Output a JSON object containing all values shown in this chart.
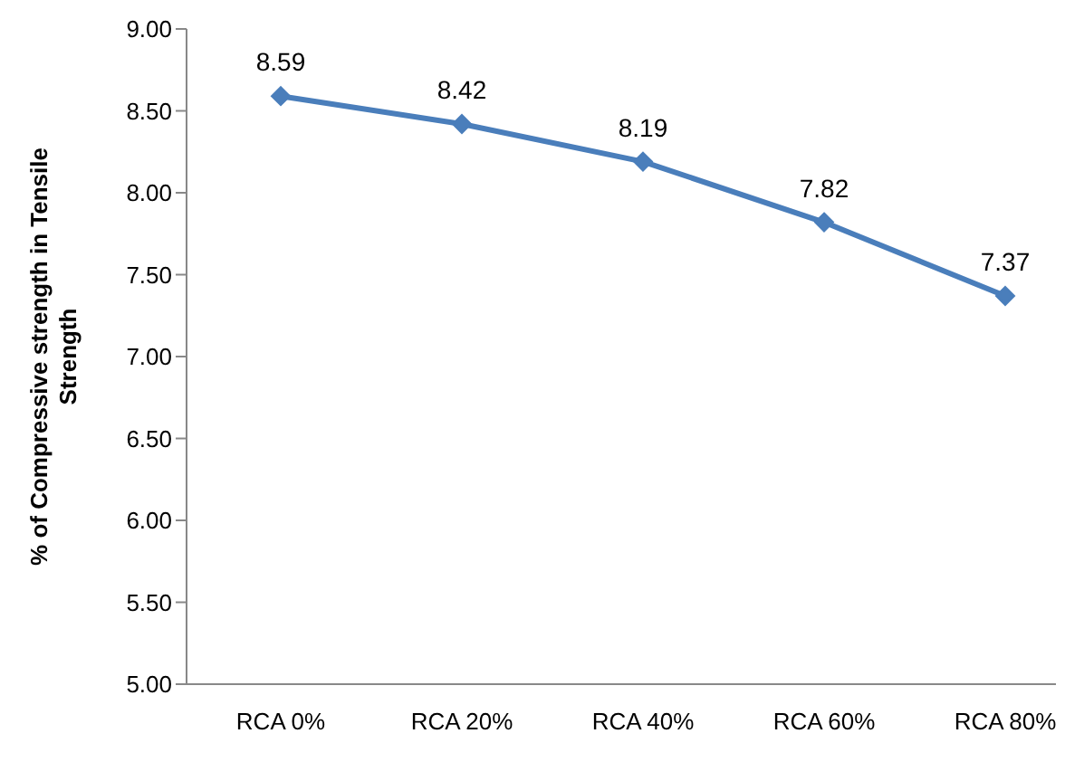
{
  "chart_data": {
    "type": "line",
    "ylabel": "% of Compressive strength in Tensile Strength",
    "categories": [
      "RCA 0%",
      "RCA 20%",
      "RCA 40%",
      "RCA 60%",
      "RCA 80%"
    ],
    "series": [
      {
        "color": "#4a7ebb",
        "values": [
          8.59,
          8.42,
          8.19,
          7.82,
          7.37
        ]
      }
    ],
    "ylim": [
      5,
      9
    ],
    "yticks": [
      {
        "value": 5,
        "label": "5.00"
      },
      {
        "value": 5.5,
        "label": "5.50"
      },
      {
        "value": 6,
        "label": "6.00"
      },
      {
        "value": 6.5,
        "label": "6.50"
      },
      {
        "value": 7,
        "label": "7.00"
      },
      {
        "value": 7.5,
        "label": "7.50"
      },
      {
        "value": 8,
        "label": "8.00"
      },
      {
        "value": 8.5,
        "label": "8.50"
      },
      {
        "value": 9,
        "label": "9.00"
      }
    ],
    "grid": false,
    "legend": false,
    "marker": "diamond",
    "line_style": "solid",
    "data_labels": true
  }
}
